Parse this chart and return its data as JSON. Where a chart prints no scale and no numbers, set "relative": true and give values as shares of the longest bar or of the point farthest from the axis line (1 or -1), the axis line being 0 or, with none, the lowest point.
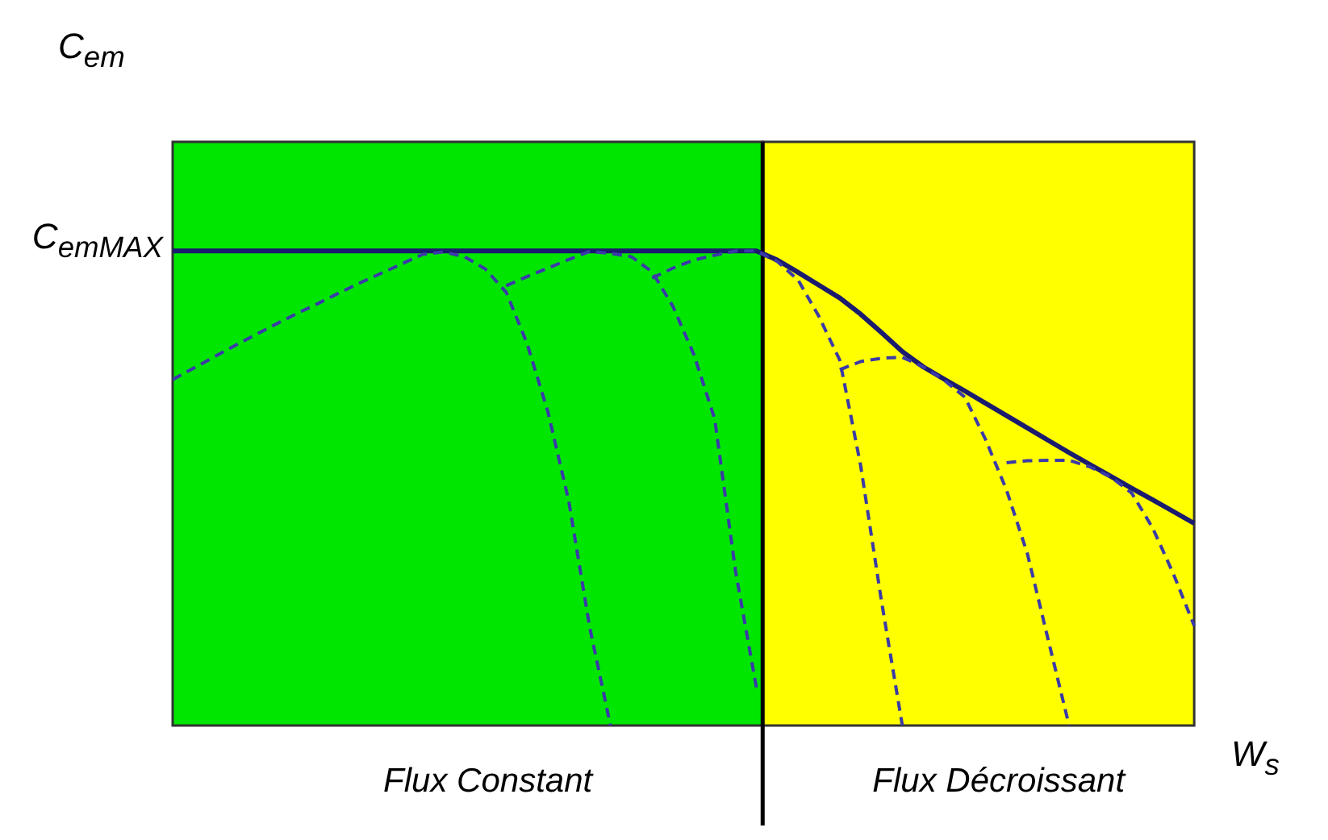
{
  "chart_data": {
    "type": "line",
    "relative": true,
    "xlabel": "W$_{s}$",
    "annotations": [
      "C$_{em}$",
      "C$_{em}$$_{MAX}$",
      "Flux Constant",
      "Flux Décroissant"
    ],
    "categories": [
      null,
      null,
      null,
      null,
      null,
      null,
      null,
      null,
      null,
      null,
      null,
      null,
      null,
      null,
      null,
      null,
      null,
      null,
      null,
      null,
      null,
      null,
      null,
      null,
      null,
      null,
      null,
      null,
      null,
      null,
      null,
      null,
      null,
      null,
      null,
      null,
      null,
      null,
      null,
      null,
      null,
      null,
      null,
      null,
      null,
      null,
      null,
      null,
      null,
      null
    ],
    "series": [
      {
        "color": "#1a1a6e",
        "line_style": "solid",
        "values": [
          1,
          1,
          1,
          1,
          1,
          1,
          1,
          1,
          1,
          1,
          1,
          1,
          1,
          1,
          1,
          1,
          1,
          1,
          1,
          1,
          1,
          1,
          1,
          1,
          1,
          1,
          1,
          1,
          1,
          0.981,
          0.955,
          0.928,
          0.901,
          0.867,
          0.828,
          0.788,
          0.756,
          0.73,
          0.705,
          0.679,
          0.653,
          0.627,
          0.601,
          0.575,
          0.55,
          0.525,
          0.5,
          0.476,
          0.451,
          0.426
        ]
      },
      {
        "color": "#3a3aa8",
        "line_style": "dashed",
        "values": [
          0.729,
          0.753,
          0.777,
          0.801,
          0.824,
          0.847,
          0.869,
          0.89,
          0.912,
          0.933,
          0.953,
          0.973,
          0.993,
          0.998,
          0.988,
          0.962,
          0.913,
          0.805,
          0.661,
          0.473,
          0.208,
          0,
          null,
          null,
          null,
          null,
          null,
          null,
          null,
          null,
          null,
          null,
          null,
          null,
          null,
          null,
          null,
          null,
          null,
          null,
          null,
          null,
          null,
          null,
          null,
          null,
          null,
          null,
          null,
          null
        ]
      },
      {
        "color": "#3a3aa8",
        "line_style": "dashed",
        "values": [
          null,
          null,
          null,
          null,
          null,
          null,
          null,
          null,
          null,
          null,
          null,
          null,
          null,
          null,
          null,
          null,
          0.927,
          0.946,
          0.964,
          0.982,
          0.999,
          0.995,
          0.988,
          0.956,
          0.883,
          0.782,
          0.646,
          0.325,
          0.08,
          null,
          null,
          null,
          null,
          null,
          null,
          null,
          null,
          null,
          null,
          null,
          null,
          null,
          null,
          null,
          null,
          null,
          null,
          null,
          null,
          null
        ]
      },
      {
        "color": "#3a3aa8",
        "line_style": "dashed",
        "values": [
          null,
          null,
          null,
          null,
          null,
          null,
          null,
          null,
          null,
          null,
          null,
          null,
          null,
          null,
          null,
          null,
          null,
          null,
          null,
          null,
          null,
          null,
          null,
          0.943,
          0.964,
          0.981,
          0.991,
          1,
          1,
          0.978,
          0.939,
          0.862,
          0.77,
          0.548,
          0.262,
          0,
          null,
          null,
          null,
          null,
          null,
          null,
          null,
          null,
          null,
          null,
          null,
          null,
          null,
          null
        ]
      },
      {
        "color": "#3a3aa8",
        "line_style": "dashed",
        "values": [
          null,
          null,
          null,
          null,
          null,
          null,
          null,
          null,
          null,
          null,
          null,
          null,
          null,
          null,
          null,
          null,
          null,
          null,
          null,
          null,
          null,
          null,
          null,
          null,
          null,
          null,
          null,
          null,
          null,
          null,
          null,
          null,
          0.75,
          0.767,
          0.774,
          0.776,
          0.756,
          0.728,
          0.692,
          0.602,
          0.496,
          0.362,
          0.18,
          0,
          null,
          null,
          null,
          null,
          null,
          null
        ]
      },
      {
        "color": "#3a3aa8",
        "line_style": "dashed",
        "values": [
          null,
          null,
          null,
          null,
          null,
          null,
          null,
          null,
          null,
          null,
          null,
          null,
          null,
          null,
          null,
          null,
          null,
          null,
          null,
          null,
          null,
          null,
          null,
          null,
          null,
          null,
          null,
          null,
          null,
          null,
          null,
          null,
          null,
          null,
          null,
          null,
          null,
          null,
          null,
          null,
          0.554,
          0.558,
          0.559,
          0.559,
          0.545,
          0.524,
          0.49,
          0.417,
          0.32,
          0.21
        ]
      }
    ]
  }
}
